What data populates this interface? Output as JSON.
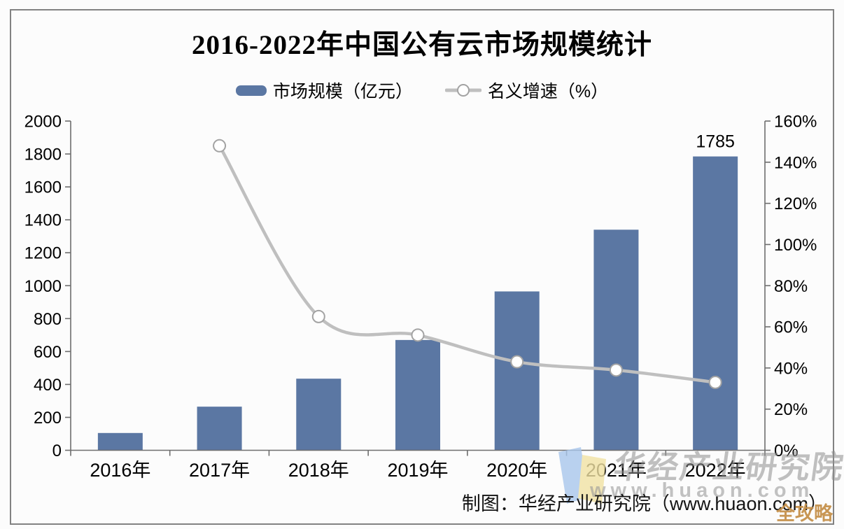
{
  "title": "2016-2022年中国公有云市场规模统计",
  "legend": [
    {
      "label": "市场规模（亿元）",
      "swatch": "bar-swatch"
    },
    {
      "label": "名义增速（%）",
      "swatch": "line-marker-swatch"
    }
  ],
  "caption": "制图：华经产业研究院（www.huaon.com）",
  "watermark": {
    "brand": "华经产业研究院",
    "url": "www.huaon.com",
    "corner": "全攻略"
  },
  "colors": {
    "bar": "#5b77a3",
    "line": "#bfbfbf",
    "marker_fill": "#ffffff",
    "marker_stroke": "#a3a3a3",
    "axis": "#6e6e6e",
    "text": "#000000",
    "watermark_gray": "#9a9a9a",
    "corner_gold": "#c6914c",
    "logo_blue": "#a9c7ec",
    "logo_yellow": "#f2e3a4"
  },
  "chart_data": {
    "type": "bar",
    "combo": "bar+line",
    "title": "2016-2022年中国公有云市场规模统计",
    "categories": [
      "2016年",
      "2017年",
      "2018年",
      "2019年",
      "2020年",
      "2021年",
      "2022年"
    ],
    "series": [
      {
        "name": "市场规模（亿元）",
        "type": "bar",
        "axis": "left",
        "unit": "亿元",
        "values": [
          105,
          265,
          435,
          670,
          965,
          1340,
          1785
        ]
      },
      {
        "name": "名义增速（%）",
        "type": "line",
        "axis": "right",
        "unit": "%",
        "values": [
          null,
          148,
          65,
          56,
          43,
          39,
          33
        ]
      }
    ],
    "data_labels": [
      {
        "series": 0,
        "category_index": 6,
        "text": "1785"
      }
    ],
    "left_axis": {
      "min": 0,
      "max": 2000,
      "step": 200,
      "tick_labels": [
        "2000",
        "1800",
        "1600",
        "1400",
        "1200",
        "1000",
        "800",
        "600",
        "400",
        "200",
        "0"
      ]
    },
    "right_axis": {
      "min": 0,
      "max": 160,
      "step": 20,
      "tick_labels": [
        "160%",
        "140%",
        "120%",
        "100%",
        "80%",
        "60%",
        "40%",
        "20%",
        "0%"
      ]
    },
    "grid": false,
    "legend_position": "top"
  }
}
